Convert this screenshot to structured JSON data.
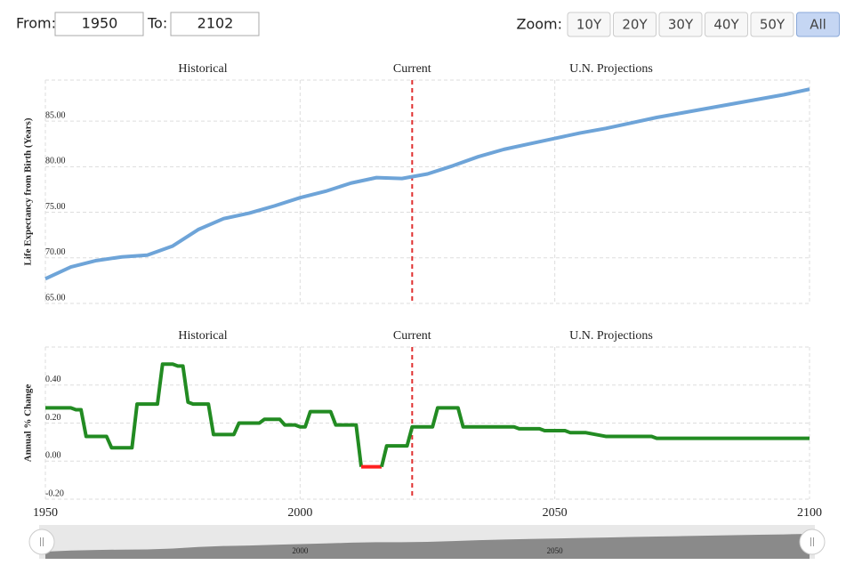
{
  "controls": {
    "from_label": "From:",
    "from": "1950",
    "to_label": "To:",
    "to": "2102",
    "zoom_label": "Zoom:",
    "zoom_buttons": [
      "10Y",
      "20Y",
      "30Y",
      "40Y",
      "50Y",
      "All"
    ],
    "active_zoom": 5
  },
  "chart_data": [
    {
      "type": "line",
      "y_label": "Life Expectancy from Birth (Years)",
      "annotations": [
        "Historical",
        "Current",
        "U.N. Projections"
      ],
      "current_x": 2022,
      "x": [
        1950,
        1955,
        1960,
        1965,
        1970,
        1975,
        1980,
        1985,
        1990,
        1995,
        2000,
        2005,
        2010,
        2015,
        2020,
        2025,
        2030,
        2035,
        2040,
        2045,
        2050,
        2055,
        2060,
        2065,
        2070,
        2075,
        2080,
        2085,
        2090,
        2095,
        2100
      ],
      "series": [
        {
          "name": "Life Expectancy",
          "color": "#6ea4d8",
          "values": [
            67.7,
            69.0,
            69.7,
            70.1,
            70.3,
            71.3,
            73.1,
            74.3,
            74.9,
            75.7,
            76.6,
            77.3,
            78.2,
            78.8,
            78.7,
            79.2,
            80.1,
            81.1,
            81.9,
            82.5,
            83.1,
            83.7,
            84.2,
            84.8,
            85.4,
            85.9,
            86.4,
            86.9,
            87.4,
            87.9,
            88.5
          ]
        }
      ],
      "xlim": [
        1950,
        2100
      ],
      "xticks": [
        1950,
        2000,
        2050,
        2100
      ],
      "ylim": [
        65,
        89.5
      ],
      "yticks": [
        {
          "value": 65,
          "label": "65.00"
        },
        {
          "value": 70,
          "label": "70.00"
        },
        {
          "value": 75,
          "label": "75.00"
        },
        {
          "value": 80,
          "label": "80.00"
        },
        {
          "value": 85,
          "label": "85.00"
        }
      ],
      "grid": true
    },
    {
      "type": "line",
      "y_label": "Annual % Change",
      "annotations": [
        "Historical",
        "Current",
        "U.N. Projections"
      ],
      "current_x": 2022,
      "x": [
        1950,
        1955,
        1956,
        1957,
        1958,
        1962,
        1963,
        1967,
        1968,
        1972,
        1973,
        1975,
        1976,
        1977,
        1978,
        1979,
        1982,
        1983,
        1987,
        1988,
        1992,
        1993,
        1996,
        1997,
        1999,
        2000,
        2001,
        2002,
        2006,
        2007,
        2011,
        2012,
        2016,
        2017,
        2021,
        2022,
        2026,
        2027,
        2031,
        2032,
        2042,
        2043,
        2047,
        2048,
        2052,
        2053,
        2056,
        2058,
        2060,
        2069,
        2070,
        2100
      ],
      "series": [
        {
          "name": "Annual % Change",
          "color": "#228b22",
          "negative_color": "#ff2020",
          "values": [
            0.28,
            0.28,
            0.27,
            0.27,
            0.13,
            0.13,
            0.07,
            0.07,
            0.3,
            0.3,
            0.51,
            0.51,
            0.5,
            0.5,
            0.31,
            0.3,
            0.3,
            0.14,
            0.14,
            0.2,
            0.2,
            0.22,
            0.22,
            0.19,
            0.19,
            0.18,
            0.18,
            0.26,
            0.26,
            0.19,
            0.19,
            -0.03,
            -0.03,
            0.08,
            0.08,
            0.18,
            0.18,
            0.28,
            0.28,
            0.18,
            0.18,
            0.17,
            0.17,
            0.16,
            0.16,
            0.15,
            0.15,
            0.14,
            0.13,
            0.13,
            0.12,
            0.12
          ]
        }
      ],
      "xlim": [
        1950,
        2100
      ],
      "xticks": [
        1950,
        2000,
        2050,
        2100
      ],
      "ylim": [
        -0.2,
        0.6
      ],
      "yticks": [
        {
          "value": -0.2,
          "label": "-0.20"
        },
        {
          "value": 0,
          "label": "0.00"
        },
        {
          "value": 0.2,
          "label": "0.20"
        },
        {
          "value": 0.4,
          "label": "0.40"
        }
      ],
      "grid": true,
      "show_x_labels": true
    }
  ],
  "navigator": {
    "xticks": [
      2000,
      2050
    ]
  }
}
